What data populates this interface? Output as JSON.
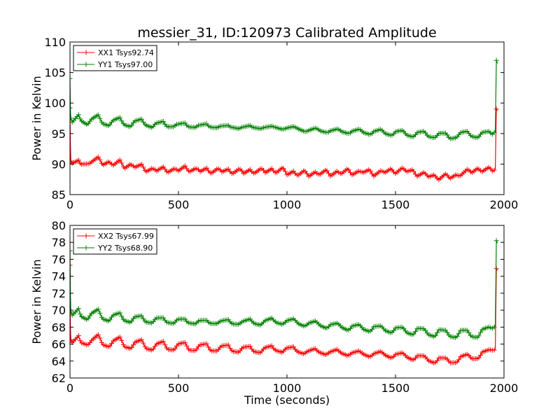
{
  "figure": {
    "title": "messier_31, ID:120973 Calibrated Amplitude",
    "xlabel": "Time (seconds)"
  },
  "chart_data": [
    {
      "type": "line",
      "title": "messier_31, ID:120973 Calibrated Amplitude",
      "xlabel": "",
      "ylabel": "Power in Kelvin",
      "xlim": [
        0,
        2000
      ],
      "ylim": [
        85,
        110
      ],
      "xticks": [
        0,
        500,
        1000,
        1500,
        2000
      ],
      "yticks": [
        85,
        90,
        95,
        100,
        105,
        110
      ],
      "grid": false,
      "legend": "top-left",
      "marker": "+",
      "series": [
        {
          "name": "XX1 Tsys92.74",
          "color": "#ff0000",
          "x": [
            0,
            2,
            4,
            10,
            40,
            50,
            80,
            100,
            130,
            150,
            180,
            200,
            230,
            250,
            280,
            300,
            330,
            350,
            380,
            400,
            430,
            450,
            480,
            500,
            530,
            550,
            580,
            600,
            630,
            650,
            680,
            700,
            730,
            750,
            780,
            800,
            830,
            850,
            880,
            900,
            930,
            950,
            980,
            1000,
            1030,
            1050,
            1080,
            1100,
            1130,
            1150,
            1180,
            1200,
            1230,
            1250,
            1280,
            1300,
            1330,
            1350,
            1380,
            1400,
            1430,
            1450,
            1480,
            1500,
            1530,
            1550,
            1580,
            1600,
            1630,
            1650,
            1680,
            1700,
            1730,
            1750,
            1780,
            1800,
            1830,
            1850,
            1880,
            1900,
            1930,
            1950,
            1955,
            1960,
            1965,
            1970
          ],
          "y": [
            99.2,
            93,
            90.5,
            90.3,
            90.8,
            90.0,
            90.2,
            90.3,
            91.0,
            89.9,
            90.6,
            89.7,
            90.5,
            89.4,
            90.2,
            89.3,
            89.8,
            88.9,
            89.5,
            88.7,
            89.4,
            88.8,
            89.4,
            88.7,
            89.6,
            88.9,
            89.4,
            88.6,
            89.3,
            88.6,
            89.3,
            88.6,
            89.2,
            88.5,
            89.2,
            88.4,
            89.2,
            88.5,
            89.2,
            88.6,
            89.4,
            88.5,
            89.3,
            88.3,
            89.0,
            88.0,
            88.8,
            88.1,
            88.9,
            88.1,
            88.9,
            88.2,
            89.0,
            88.2,
            89.1,
            88.4,
            89.0,
            88.4,
            89.0,
            88.2,
            89.0,
            88.4,
            89.2,
            88.6,
            89.4,
            88.6,
            89.1,
            88.1,
            88.6,
            87.8,
            88.3,
            87.5,
            88.3,
            87.6,
            88.4,
            88.1,
            89.0,
            88.6,
            89.5,
            88.7,
            89.3,
            88.8,
            89.0,
            89.2,
            99.0,
            98.8
          ]
        },
        {
          "name": "YY1 Tsys97.00",
          "color": "#008000",
          "x": [
            0,
            2,
            4,
            10,
            40,
            50,
            80,
            100,
            130,
            150,
            180,
            200,
            230,
            250,
            280,
            300,
            330,
            350,
            380,
            400,
            430,
            450,
            480,
            500,
            530,
            550,
            580,
            600,
            630,
            650,
            680,
            700,
            730,
            750,
            780,
            800,
            830,
            850,
            880,
            900,
            930,
            950,
            980,
            1000,
            1030,
            1050,
            1080,
            1100,
            1130,
            1150,
            1180,
            1200,
            1230,
            1250,
            1280,
            1300,
            1330,
            1350,
            1380,
            1400,
            1430,
            1450,
            1480,
            1500,
            1530,
            1550,
            1580,
            1600,
            1630,
            1650,
            1680,
            1700,
            1730,
            1750,
            1780,
            1800,
            1830,
            1850,
            1880,
            1900,
            1930,
            1950,
            1955,
            1960,
            1965,
            1970
          ],
          "y": [
            104,
            99,
            97.5,
            97.0,
            98.1,
            97.3,
            96.6,
            97.2,
            97.9,
            96.8,
            96.4,
            97.0,
            97.5,
            96.6,
            96.2,
            96.9,
            97.3,
            96.5,
            96.0,
            96.6,
            97.0,
            96.2,
            96.1,
            96.5,
            96.8,
            96.1,
            95.9,
            96.4,
            96.7,
            96.0,
            95.8,
            96.3,
            96.5,
            95.9,
            95.6,
            96.2,
            96.5,
            95.8,
            95.6,
            96.2,
            96.4,
            95.8,
            95.5,
            96.1,
            96.3,
            95.6,
            95.2,
            95.7,
            96.0,
            95.3,
            95.1,
            95.6,
            95.8,
            95.2,
            95.0,
            95.5,
            95.7,
            95.1,
            94.9,
            95.4,
            95.6,
            95.0,
            94.8,
            95.3,
            95.4,
            94.8,
            94.6,
            95.1,
            95.2,
            94.6,
            94.5,
            94.9,
            94.9,
            94.3,
            94.5,
            95.0,
            95.2,
            94.7,
            94.5,
            95.0,
            95.2,
            95.0,
            95.2,
            95.3,
            107.0,
            106.5
          ]
        }
      ]
    },
    {
      "type": "line",
      "title": "",
      "xlabel": "Time (seconds)",
      "ylabel": "Power in Kelvin",
      "xlim": [
        0,
        2000
      ],
      "ylim": [
        62,
        80
      ],
      "xticks": [
        0,
        500,
        1000,
        1500,
        2000
      ],
      "yticks": [
        62,
        64,
        66,
        68,
        70,
        72,
        74,
        76,
        78,
        80
      ],
      "grid": false,
      "legend": "top-left",
      "marker": "+",
      "series": [
        {
          "name": "XX2 Tsys67.99",
          "color": "#ff0000",
          "x": [
            0,
            2,
            4,
            10,
            40,
            50,
            80,
            100,
            130,
            150,
            180,
            200,
            230,
            250,
            280,
            300,
            330,
            350,
            380,
            400,
            430,
            450,
            480,
            500,
            530,
            550,
            580,
            600,
            630,
            650,
            680,
            700,
            730,
            750,
            780,
            800,
            830,
            850,
            880,
            900,
            930,
            950,
            980,
            1000,
            1030,
            1050,
            1080,
            1100,
            1130,
            1150,
            1180,
            1200,
            1230,
            1250,
            1280,
            1300,
            1330,
            1350,
            1380,
            1400,
            1430,
            1450,
            1480,
            1500,
            1530,
            1550,
            1580,
            1600,
            1630,
            1650,
            1680,
            1700,
            1730,
            1750,
            1780,
            1800,
            1830,
            1850,
            1880,
            1900,
            1930,
            1950,
            1955,
            1960,
            1965,
            1970
          ],
          "y": [
            75.3,
            68,
            66.5,
            66.3,
            67.1,
            66.2,
            66.0,
            66.4,
            67.0,
            66.0,
            65.8,
            66.3,
            66.7,
            65.8,
            65.6,
            66.1,
            66.4,
            65.6,
            65.4,
            65.9,
            66.2,
            65.5,
            65.4,
            65.9,
            66.1,
            65.4,
            65.3,
            65.8,
            66.0,
            65.3,
            65.2,
            65.7,
            65.9,
            65.2,
            65.0,
            65.6,
            65.8,
            65.1,
            64.9,
            65.6,
            65.9,
            65.2,
            64.9,
            65.6,
            65.8,
            65.0,
            64.7,
            65.3,
            65.6,
            64.9,
            64.6,
            65.2,
            65.5,
            64.8,
            64.5,
            65.1,
            65.3,
            64.7,
            64.4,
            65.0,
            65.2,
            64.6,
            64.3,
            64.9,
            65.0,
            64.4,
            64.1,
            64.7,
            64.6,
            64.0,
            63.8,
            64.4,
            64.3,
            63.8,
            63.9,
            64.5,
            64.7,
            64.3,
            64.4,
            65.0,
            65.2,
            65.3,
            65.3,
            65.4,
            74.9,
            74.7
          ]
        },
        {
          "name": "YY2 Tsys68.90",
          "color": "#008000",
          "x": [
            0,
            2,
            4,
            10,
            40,
            50,
            80,
            100,
            130,
            150,
            180,
            200,
            230,
            250,
            280,
            300,
            330,
            350,
            380,
            400,
            430,
            450,
            480,
            500,
            530,
            550,
            580,
            600,
            630,
            650,
            680,
            700,
            730,
            750,
            780,
            800,
            830,
            850,
            880,
            900,
            930,
            950,
            980,
            1000,
            1030,
            1050,
            1080,
            1100,
            1130,
            1150,
            1180,
            1200,
            1230,
            1250,
            1280,
            1300,
            1330,
            1350,
            1380,
            1400,
            1430,
            1450,
            1480,
            1500,
            1530,
            1550,
            1580,
            1600,
            1630,
            1650,
            1680,
            1700,
            1730,
            1750,
            1780,
            1800,
            1830,
            1850,
            1880,
            1900,
            1930,
            1950,
            1955,
            1960,
            1965,
            1970
          ],
          "y": [
            77.0,
            72,
            69.8,
            69.5,
            70.2,
            69.4,
            69.0,
            69.5,
            70.0,
            69.1,
            68.8,
            69.3,
            69.6,
            68.9,
            68.6,
            69.1,
            69.3,
            68.7,
            68.5,
            69.0,
            69.1,
            68.6,
            68.4,
            68.9,
            69.0,
            68.5,
            68.3,
            68.8,
            68.9,
            68.4,
            68.3,
            68.8,
            69.0,
            68.3,
            68.2,
            68.8,
            69.1,
            68.3,
            68.1,
            68.9,
            69.2,
            68.4,
            68.2,
            68.9,
            69.1,
            68.3,
            68.0,
            68.6,
            68.8,
            68.1,
            67.8,
            68.4,
            68.5,
            67.9,
            67.6,
            68.2,
            68.3,
            67.7,
            67.5,
            68.1,
            68.1,
            67.6,
            67.4,
            67.9,
            67.9,
            67.4,
            67.2,
            67.8,
            67.7,
            67.2,
            67.0,
            67.6,
            67.5,
            67.0,
            66.9,
            67.5,
            67.5,
            67.0,
            66.9,
            67.6,
            67.9,
            68.0,
            68.0,
            68.2,
            78.2,
            77.9
          ]
        }
      ]
    }
  ]
}
